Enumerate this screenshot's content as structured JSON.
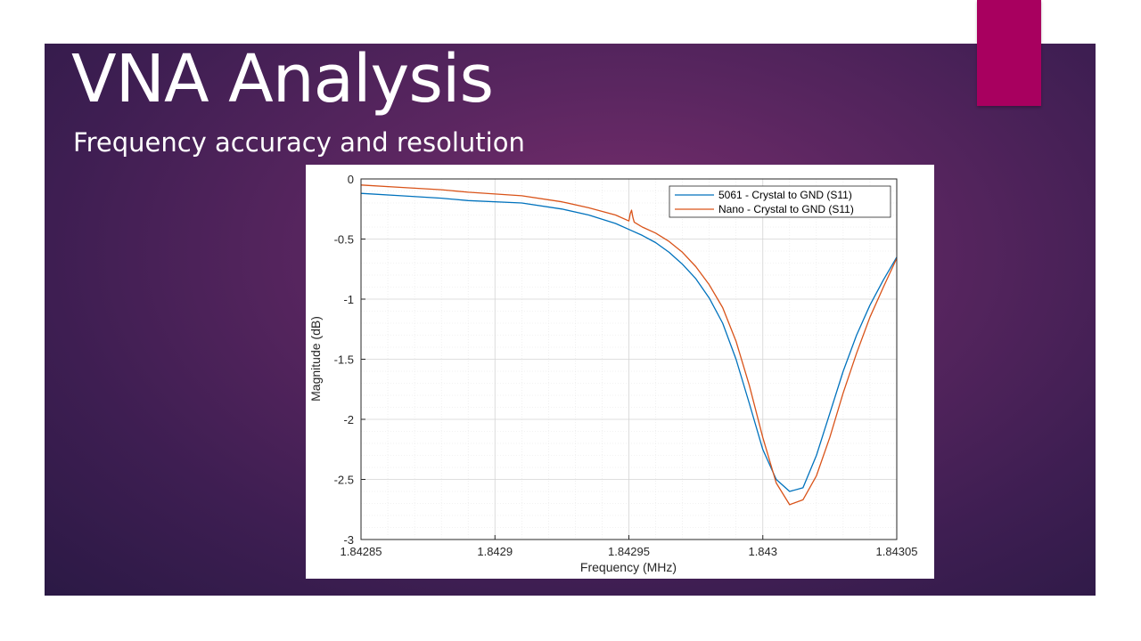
{
  "slide": {
    "title": "VNA Analysis",
    "subtitle": "Frequency accuracy and resolution",
    "accent_color": "#a8005f"
  },
  "chart_data": {
    "type": "line",
    "xlabel": "Frequency (MHz)",
    "ylabel": "Magnitude (dB)",
    "xlim": [
      1.84285,
      1.84305
    ],
    "ylim": [
      -3,
      0
    ],
    "x_ticks": [
      1.84285,
      1.8429,
      1.84295,
      1.843,
      1.84305
    ],
    "x_tick_labels": [
      "1.84285",
      "1.8429",
      "1.84295",
      "1.843",
      "1.84305"
    ],
    "y_ticks": [
      0,
      -0.5,
      -1,
      -1.5,
      -2,
      -2.5,
      -3
    ],
    "y_tick_labels": [
      "0",
      "-0.5",
      "-1",
      "-1.5",
      "-2",
      "-2.5",
      "-3"
    ],
    "grid": "major and minor",
    "legend_position": "top-right",
    "series": [
      {
        "name": "5061 - Crystal to GND (S11)",
        "color": "#0072BD",
        "x": [
          1.84285,
          1.842865,
          1.84288,
          1.84289,
          1.84291,
          1.842925,
          1.842935,
          1.842945,
          1.84295,
          1.842955,
          1.84296,
          1.842965,
          1.84297,
          1.842975,
          1.84298,
          1.842985,
          1.84299,
          1.842995,
          1.843,
          1.843005,
          1.84301,
          1.843015,
          1.84302,
          1.843025,
          1.84303,
          1.843035,
          1.84304,
          1.843045,
          1.84305
        ],
        "y": [
          -0.12,
          -0.14,
          -0.16,
          -0.18,
          -0.2,
          -0.25,
          -0.3,
          -0.37,
          -0.42,
          -0.47,
          -0.53,
          -0.61,
          -0.71,
          -0.83,
          -0.99,
          -1.2,
          -1.5,
          -1.87,
          -2.25,
          -2.5,
          -2.6,
          -2.57,
          -2.3,
          -1.95,
          -1.6,
          -1.3,
          -1.05,
          -0.84,
          -0.65
        ]
      },
      {
        "name": "Nano - Crystal to GND (S11)",
        "color": "#D95319",
        "x": [
          1.84285,
          1.842865,
          1.84288,
          1.84289,
          1.84291,
          1.842925,
          1.842935,
          1.842945,
          1.84295,
          1.8429505,
          1.842951,
          1.8429515,
          1.842952,
          1.842955,
          1.84296,
          1.842965,
          1.84297,
          1.842975,
          1.84298,
          1.842985,
          1.84299,
          1.842995,
          1.843,
          1.843005,
          1.84301,
          1.843015,
          1.84302,
          1.843025,
          1.84303,
          1.843035,
          1.84304,
          1.843045,
          1.84305
        ],
        "y": [
          -0.05,
          -0.07,
          -0.09,
          -0.11,
          -0.14,
          -0.19,
          -0.24,
          -0.3,
          -0.35,
          -0.29,
          -0.26,
          -0.32,
          -0.36,
          -0.4,
          -0.45,
          -0.52,
          -0.61,
          -0.73,
          -0.88,
          -1.07,
          -1.35,
          -1.72,
          -2.15,
          -2.53,
          -2.71,
          -2.67,
          -2.47,
          -2.15,
          -1.78,
          -1.45,
          -1.15,
          -0.9,
          -0.66
        ]
      }
    ]
  }
}
